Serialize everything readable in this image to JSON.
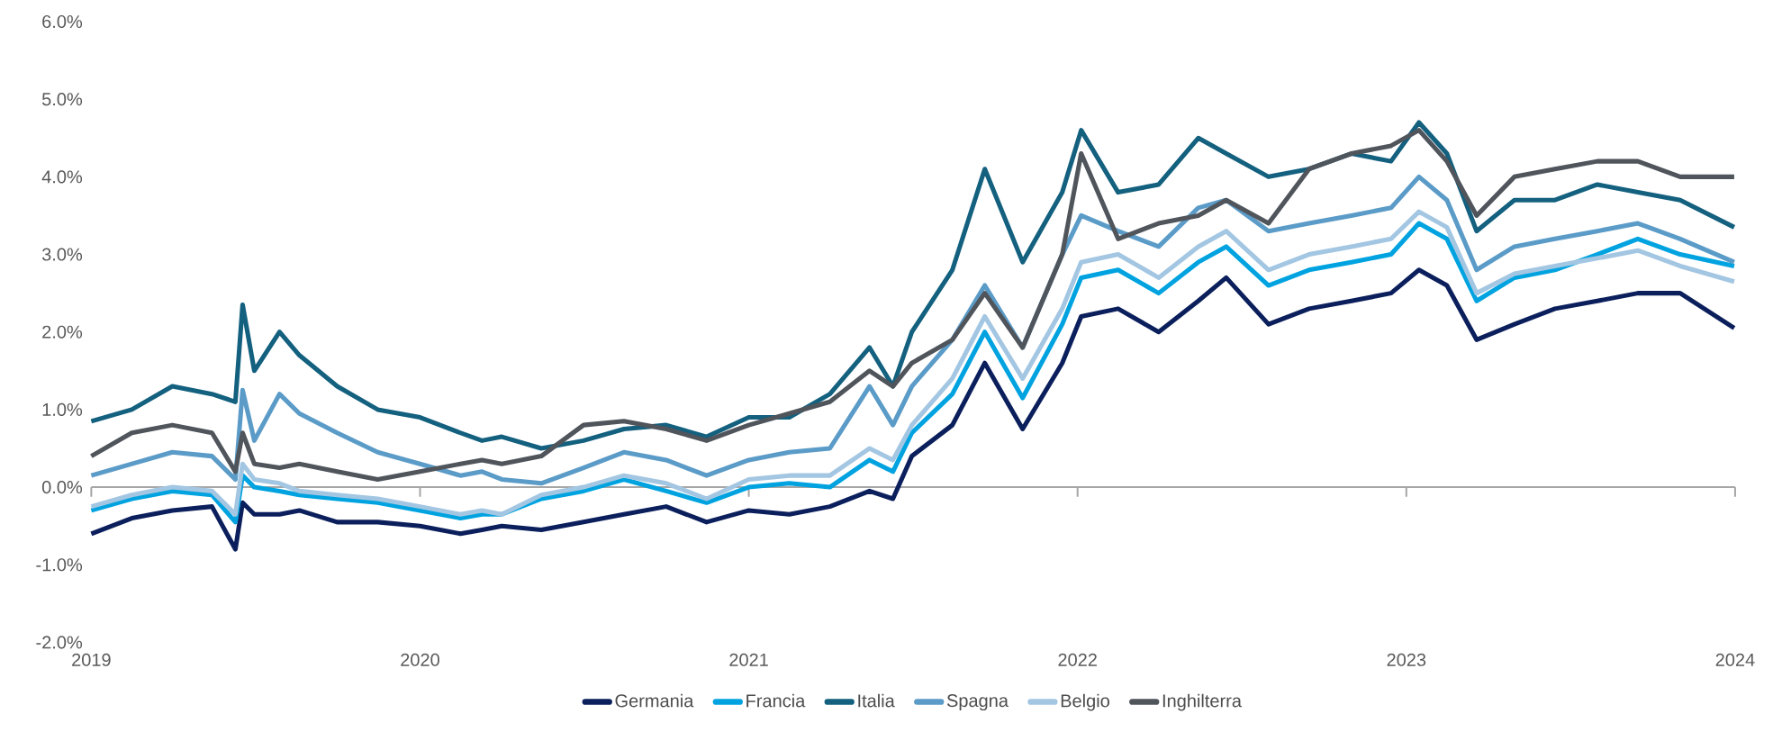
{
  "chart_data": {
    "type": "line",
    "x": [
      "2019-01-01",
      "2019-02-15",
      "2019-04-01",
      "2019-05-15",
      "2019-06-10",
      "2019-06-18",
      "2019-07-01",
      "2019-07-29",
      "2019-08-20",
      "2019-10-01",
      "2019-11-15",
      "2020-01-01",
      "2020-02-15",
      "2020-03-10",
      "2020-04-01",
      "2020-05-15",
      "2020-07-01",
      "2020-08-15",
      "2020-10-01",
      "2020-11-15",
      "2021-01-01",
      "2021-02-15",
      "2021-04-01",
      "2021-05-15",
      "2021-06-10",
      "2021-07-01",
      "2021-08-15",
      "2021-09-20",
      "2021-11-01",
      "2021-12-15",
      "2022-01-05",
      "2022-02-15",
      "2022-04-01",
      "2022-05-15",
      "2022-06-15",
      "2022-08-01",
      "2022-09-15",
      "2022-11-01",
      "2022-12-15",
      "2023-01-15",
      "2023-02-15",
      "2023-03-20",
      "2023-05-01",
      "2023-06-15",
      "2023-08-01",
      "2023-09-15",
      "2023-11-01",
      "2023-12-31"
    ],
    "series": [
      {
        "name": "Germania",
        "color": "#0b1f5c",
        "values": [
          -0.6,
          -0.4,
          -0.3,
          -0.25,
          -0.8,
          -0.2,
          -0.35,
          -0.35,
          -0.3,
          -0.45,
          -0.45,
          -0.5,
          -0.6,
          -0.55,
          -0.5,
          -0.55,
          -0.45,
          -0.35,
          -0.25,
          -0.45,
          -0.3,
          -0.35,
          -0.25,
          -0.05,
          -0.15,
          0.4,
          0.8,
          1.6,
          0.75,
          1.6,
          2.2,
          2.3,
          2.0,
          2.4,
          2.7,
          2.1,
          2.3,
          2.4,
          2.5,
          2.8,
          2.6,
          1.9,
          2.1,
          2.3,
          2.4,
          2.5,
          2.5,
          2.05
        ]
      },
      {
        "name": "Francia",
        "color": "#00a3e0",
        "values": [
          -0.3,
          -0.15,
          -0.05,
          -0.1,
          -0.45,
          0.15,
          0.0,
          -0.05,
          -0.1,
          -0.15,
          -0.2,
          -0.3,
          -0.4,
          -0.35,
          -0.35,
          -0.15,
          -0.05,
          0.1,
          -0.05,
          -0.2,
          0.0,
          0.05,
          0.0,
          0.35,
          0.2,
          0.7,
          1.2,
          2.0,
          1.15,
          2.1,
          2.7,
          2.8,
          2.5,
          2.9,
          3.1,
          2.6,
          2.8,
          2.9,
          3.0,
          3.4,
          3.2,
          2.4,
          2.7,
          2.8,
          3.0,
          3.2,
          3.0,
          2.85
        ]
      },
      {
        "name": "Italia",
        "color": "#13607f",
        "values": [
          0.85,
          1.0,
          1.3,
          1.2,
          1.1,
          2.35,
          1.5,
          2.0,
          1.7,
          1.3,
          1.0,
          0.9,
          0.7,
          0.6,
          0.65,
          0.5,
          0.6,
          0.75,
          0.8,
          0.65,
          0.9,
          0.9,
          1.2,
          1.8,
          1.3,
          2.0,
          2.8,
          4.1,
          2.9,
          3.8,
          4.6,
          3.8,
          3.9,
          4.5,
          4.3,
          4.0,
          4.1,
          4.3,
          4.2,
          4.7,
          4.3,
          3.3,
          3.7,
          3.7,
          3.9,
          3.8,
          3.7,
          3.35
        ]
      },
      {
        "name": "Spagna",
        "color": "#5b9bc8",
        "values": [
          0.15,
          0.3,
          0.45,
          0.4,
          0.1,
          1.25,
          0.6,
          1.2,
          0.95,
          0.7,
          0.45,
          0.3,
          0.15,
          0.2,
          0.1,
          0.05,
          0.25,
          0.45,
          0.35,
          0.15,
          0.35,
          0.45,
          0.5,
          1.3,
          0.8,
          1.3,
          1.9,
          2.6,
          1.8,
          3.0,
          3.5,
          3.3,
          3.1,
          3.6,
          3.7,
          3.3,
          3.4,
          3.5,
          3.6,
          4.0,
          3.7,
          2.8,
          3.1,
          3.2,
          3.3,
          3.4,
          3.2,
          2.9
        ]
      },
      {
        "name": "Belgio",
        "color": "#a3c6e2",
        "values": [
          -0.25,
          -0.1,
          0.0,
          -0.05,
          -0.35,
          0.3,
          0.1,
          0.05,
          -0.05,
          -0.1,
          -0.15,
          -0.25,
          -0.35,
          -0.3,
          -0.35,
          -0.1,
          0.0,
          0.15,
          0.05,
          -0.15,
          0.1,
          0.15,
          0.15,
          0.5,
          0.35,
          0.8,
          1.4,
          2.2,
          1.4,
          2.3,
          2.9,
          3.0,
          2.7,
          3.1,
          3.3,
          2.8,
          3.0,
          3.1,
          3.2,
          3.55,
          3.35,
          2.5,
          2.75,
          2.85,
          2.95,
          3.05,
          2.85,
          2.65
        ]
      },
      {
        "name": "Inghilterra",
        "color": "#50555c",
        "values": [
          0.4,
          0.7,
          0.8,
          0.7,
          0.2,
          0.7,
          0.3,
          0.25,
          0.3,
          0.2,
          0.1,
          0.2,
          0.3,
          0.35,
          0.3,
          0.4,
          0.8,
          0.85,
          0.75,
          0.6,
          0.8,
          0.95,
          1.1,
          1.5,
          1.3,
          1.6,
          1.9,
          2.5,
          1.8,
          3.0,
          4.3,
          3.2,
          3.4,
          3.5,
          3.7,
          3.4,
          4.1,
          4.3,
          4.4,
          4.6,
          4.2,
          3.5,
          4.0,
          4.1,
          4.2,
          4.2,
          4.0,
          4.0
        ]
      }
    ],
    "xlim": [
      "2019",
      "2024"
    ],
    "xticks": [
      "2019",
      "2020",
      "2021",
      "2022",
      "2023",
      "2024"
    ],
    "ylim": [
      -2,
      6
    ],
    "yticks": [
      {
        "value": -2,
        "label": "-2.0%"
      },
      {
        "value": -1,
        "label": "-1.0%"
      },
      {
        "value": 0,
        "label": "0.0%"
      },
      {
        "value": 1,
        "label": "1.0%"
      },
      {
        "value": 2,
        "label": "2.0%"
      },
      {
        "value": 3,
        "label": "3.0%"
      },
      {
        "value": 4,
        "label": "4.0%"
      },
      {
        "value": 5,
        "label": "5.0%"
      },
      {
        "value": 6,
        "label": "6.0%"
      }
    ],
    "ref_lines": [
      {
        "axis": "y",
        "value": 0,
        "color": "#a6a6a6"
      }
    ],
    "legend": "bottom",
    "marker": "none",
    "line_style": "solid",
    "grid": false
  }
}
